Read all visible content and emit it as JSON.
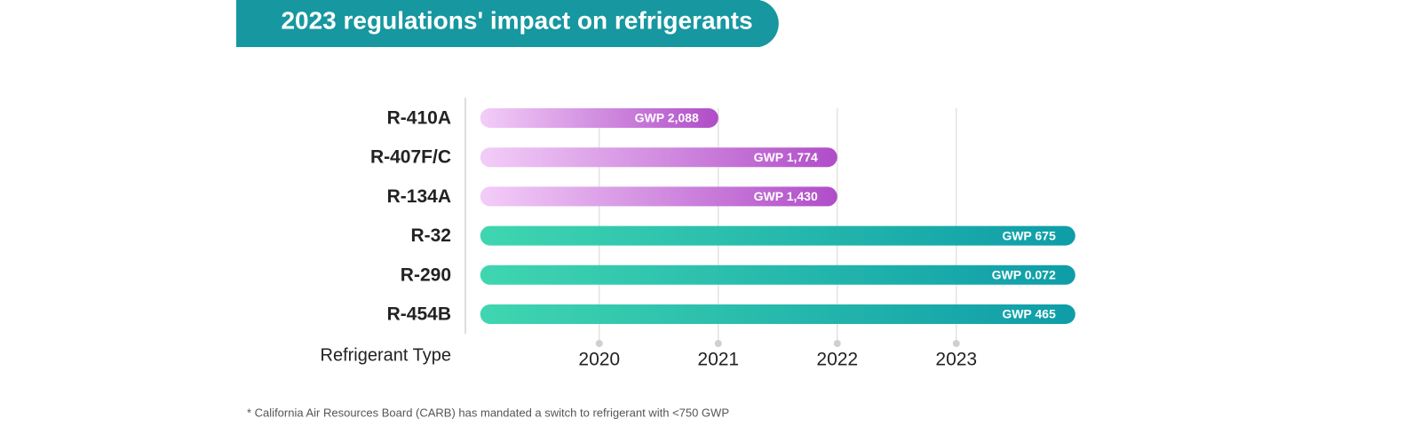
{
  "chart_data": {
    "type": "timeline-bar",
    "title": "2023 regulations' impact on refrigerants",
    "y_label": "Refrigerant Type",
    "footnote": "* California Air Resources Board (CARB) has mandated a switch to refrigerant with <750 GWP",
    "categories": [
      "R-410A",
      "R-407F/C",
      "R-134A",
      "R-32",
      "R-290",
      "R-454B"
    ],
    "starts": [
      2019,
      2019,
      2019,
      2019,
      2019,
      2019
    ],
    "values": [
      2021,
      2022,
      2022,
      2024,
      2024,
      2024
    ],
    "bar_labels": [
      "GWP 2,088",
      "GWP 1,774",
      "GWP 1,430",
      "GWP 675",
      "GWP 0.072",
      "GWP 465"
    ],
    "bar_colors": [
      [
        "#f3cdf8",
        "#b04dc8"
      ],
      [
        "#f3cdf8",
        "#b04dc8"
      ],
      [
        "#f3cdf8",
        "#b04dc8"
      ],
      [
        "#3fd6b0",
        "#0e9da8"
      ],
      [
        "#3fd6b0",
        "#0e9da8"
      ],
      [
        "#3fd6b0",
        "#0e9da8"
      ]
    ],
    "xlim": [
      2018.875,
      2024
    ],
    "xticks": [
      2020,
      2021,
      2022,
      2023
    ],
    "grid": true,
    "title_color": "#1797a0"
  }
}
